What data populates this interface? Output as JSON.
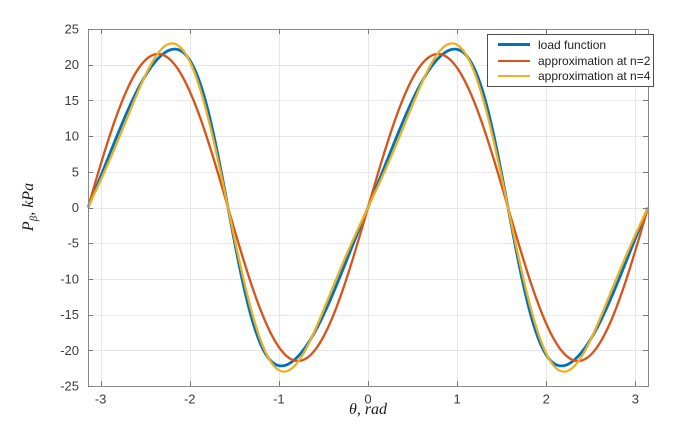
{
  "figure": {
    "background": "#ffffff",
    "frame_color": "#8a8a8a",
    "grid_color": "#e7e7e7",
    "tick_color": "#7a7a7a",
    "tick_label_color": "#3c3c3c"
  },
  "chart_data": {
    "type": "line",
    "title": "",
    "xlabel": "θ, rad",
    "ylabel": "P_β, kPa",
    "xlabel_parts": {
      "symbol": "θ",
      "rest": ", rad"
    },
    "ylabel_parts": {
      "symbol": "P",
      "subscript": "β",
      "rest": ", kPa"
    },
    "xlim": [
      -3.14159,
      3.14159
    ],
    "ylim": [
      -25,
      25
    ],
    "xticks": [
      -3,
      -2,
      -1,
      0,
      1,
      2,
      3
    ],
    "yticks": [
      -25,
      -20,
      -15,
      -10,
      -5,
      0,
      5,
      10,
      15,
      20,
      25
    ],
    "grid": true,
    "legend_position": "top-right-inside",
    "key_values": {
      "period_rad": 3.1416,
      "zeros_at_rad": [
        -3.1416,
        -1.5708,
        0,
        1.5708,
        3.1416
      ],
      "load_peak_kPa": 22.2,
      "load_peak_theta_rad": 0.97,
      "n2_amplitude_kPa": 21.5,
      "n2_peak_theta_rad": 0.785,
      "n4_peak_kPa": 22.9,
      "n4_peak_theta_rad": 0.93
    },
    "series": [
      {
        "name": "load function",
        "color": "#0072BD",
        "line_width": 2.8,
        "sine_harmonics": [
          {
            "k": 2,
            "a": 21.7
          },
          {
            "k": 4,
            "a": -3.9
          },
          {
            "k": 6,
            "a": 0.85
          },
          {
            "k": 8,
            "a": -0.3
          }
        ]
      },
      {
        "name": "approximation at n=2",
        "color": "#D95319",
        "line_width": 2.3,
        "sine_harmonics": [
          {
            "k": 2,
            "a": 21.5
          }
        ]
      },
      {
        "name": "approximation at n=4",
        "color": "#EDB120",
        "line_width": 2.3,
        "sine_harmonics": [
          {
            "k": 2,
            "a": 21.6
          },
          {
            "k": 4,
            "a": -4.15
          }
        ]
      }
    ]
  },
  "legend": {
    "items": [
      {
        "label": "load function",
        "color": "#0072BD"
      },
      {
        "label": "approximation at n=2",
        "color": "#D95319"
      },
      {
        "label": "approximation at n=4",
        "color": "#EDB120"
      }
    ]
  }
}
